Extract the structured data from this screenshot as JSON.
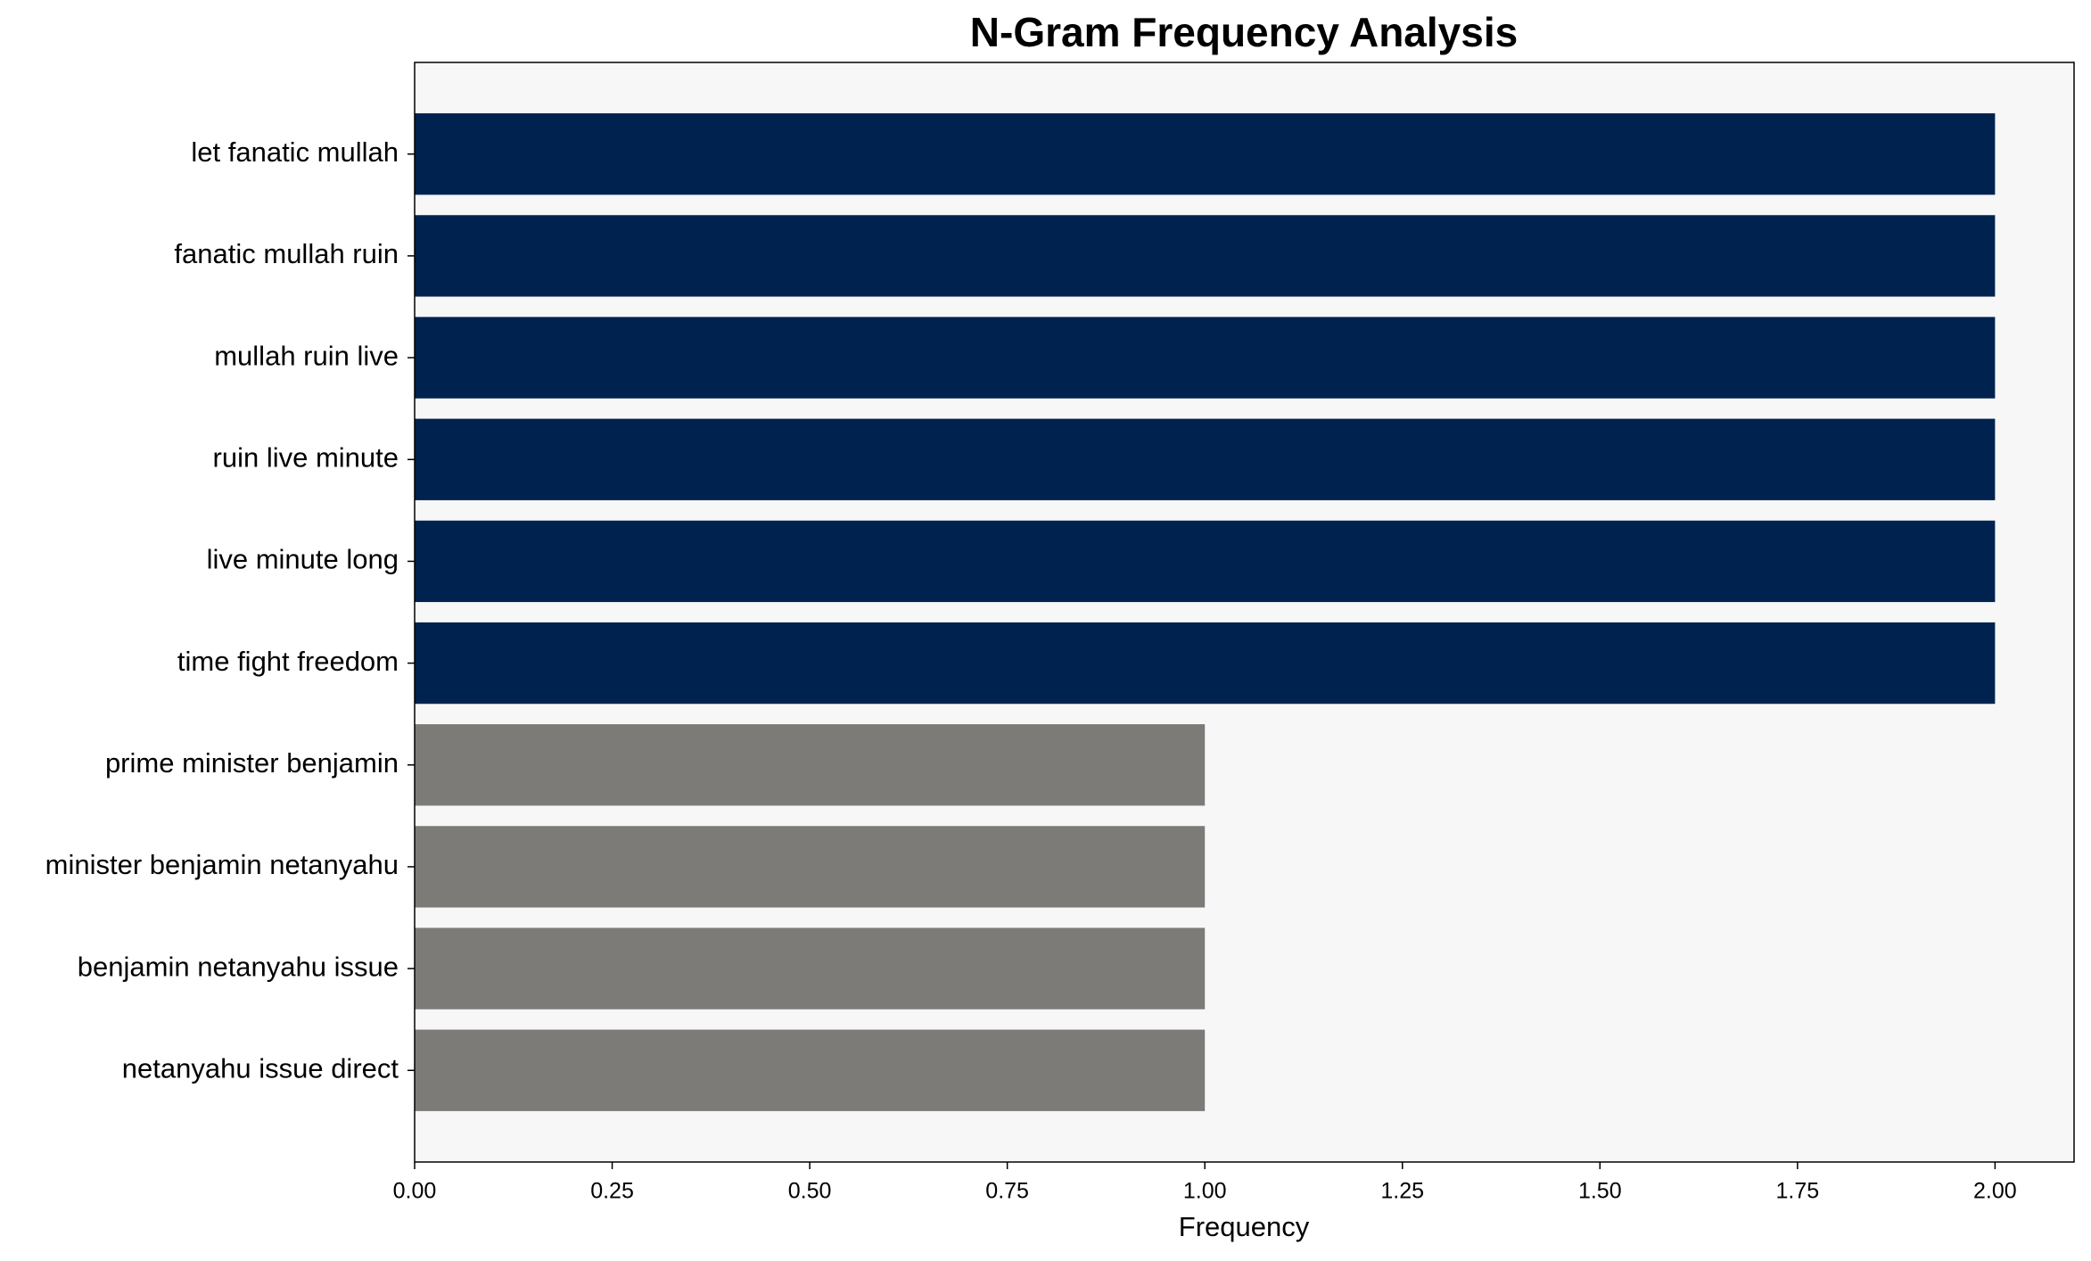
{
  "chart_data": {
    "type": "barh",
    "title": "N-Gram Frequency Analysis",
    "x_label": "Frequency",
    "categories": [
      "let fanatic mullah",
      "fanatic mullah ruin",
      "mullah ruin live",
      "ruin live minute",
      "live minute long",
      "time fight freedom",
      "prime minister benjamin",
      "minister benjamin netanyahu",
      "benjamin netanyahu issue",
      "netanyahu issue direct"
    ],
    "values": [
      2,
      2,
      2,
      2,
      2,
      2,
      1,
      1,
      1,
      1
    ],
    "colors": [
      "#00224e",
      "#00224e",
      "#00224e",
      "#00224e",
      "#00224e",
      "#00224e",
      "#7c7b78",
      "#7c7b78",
      "#7c7b78",
      "#7c7b78"
    ],
    "xlim": [
      0,
      2.1
    ],
    "xticks": [
      {
        "value": 0,
        "label": "0.00"
      },
      {
        "value": 0.25,
        "label": "0.25"
      },
      {
        "value": 0.5,
        "label": "0.50"
      },
      {
        "value": 0.75,
        "label": "0.75"
      },
      {
        "value": 1,
        "label": "1.00"
      },
      {
        "value": 1.25,
        "label": "1.25"
      },
      {
        "value": 1.5,
        "label": "1.50"
      },
      {
        "value": 1.75,
        "label": "1.75"
      },
      {
        "value": 2,
        "label": "2.00"
      }
    ],
    "grid": false
  }
}
